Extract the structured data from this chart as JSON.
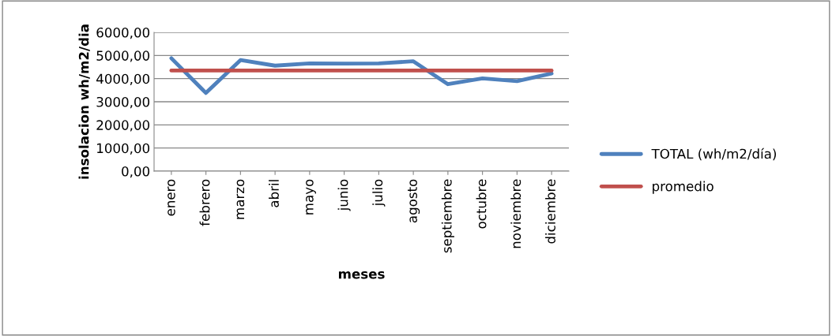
{
  "chart_data": {
    "type": "line",
    "xlabel": "meses",
    "ylabel": "insolacion wh/m2/dia",
    "categories": [
      "enero",
      "febrero",
      "marzo",
      "abril",
      "mayo",
      "junio",
      "julio",
      "agosto",
      "septiembre",
      "octubre",
      "noviembre",
      "diciembre"
    ],
    "series": [
      {
        "name": "TOTAL (wh/m2/día)",
        "color": "#4f81bd",
        "values": [
          4880,
          3380,
          4800,
          4560,
          4660,
          4650,
          4660,
          4750,
          3760,
          4010,
          3890,
          4220
        ]
      },
      {
        "name": "promedio",
        "color": "#c0504d",
        "values": [
          4350,
          4350,
          4350,
          4350,
          4350,
          4350,
          4350,
          4350,
          4350,
          4350,
          4350,
          4350
        ]
      }
    ],
    "ylim": [
      0,
      6000
    ],
    "yticks": [
      {
        "value": 0,
        "label": "0,00"
      },
      {
        "value": 1000,
        "label": "1000,00"
      },
      {
        "value": 2000,
        "label": "2000,00"
      },
      {
        "value": 3000,
        "label": "3000,00"
      },
      {
        "value": 4000,
        "label": "4000,00"
      },
      {
        "value": 5000,
        "label": "5000,00"
      },
      {
        "value": 6000,
        "label": "6000,00"
      }
    ],
    "grid": "y",
    "legend": "right",
    "marker": "none",
    "line_style": "solid"
  }
}
